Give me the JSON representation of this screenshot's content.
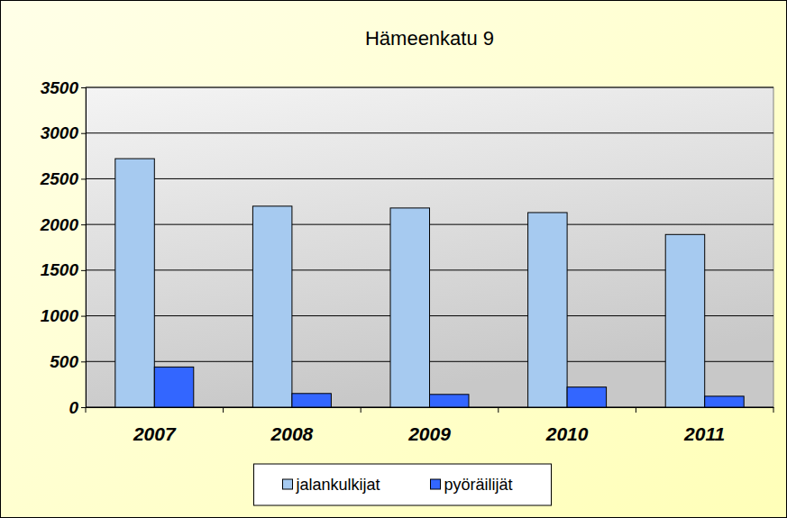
{
  "chart_data": {
    "type": "bar",
    "title": "Hämeenkatu 9",
    "categories": [
      "2007",
      "2008",
      "2009",
      "2010",
      "2011"
    ],
    "series": [
      {
        "name": "jalankulkijat",
        "color": "#a6caf0",
        "values": [
          2720,
          2200,
          2180,
          2130,
          1890
        ]
      },
      {
        "name": "pyöräilijät",
        "color": "#3366ff",
        "values": [
          440,
          150,
          140,
          220,
          120
        ]
      }
    ],
    "ylim": [
      0,
      3500
    ],
    "yticks": [
      0,
      500,
      1000,
      1500,
      2000,
      2500,
      3000,
      3500
    ],
    "grid": true,
    "legend": "bottom"
  }
}
